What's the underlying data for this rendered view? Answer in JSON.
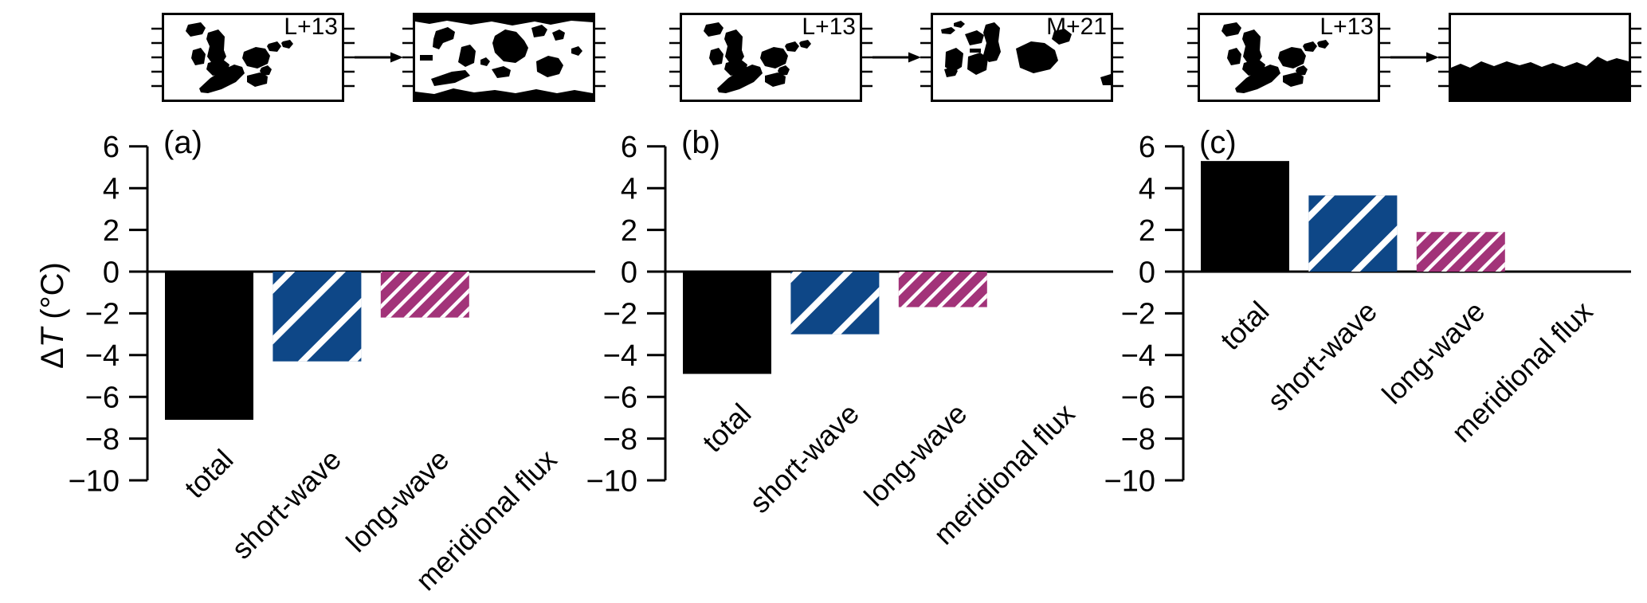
{
  "y_axis": {
    "label_delta": "Δ",
    "label_var": "T",
    "label_unit": " (°C)",
    "ticks": [
      6,
      4,
      2,
      0,
      -2,
      -4,
      -6,
      -8,
      -10
    ],
    "tick_labels": [
      "6",
      "4",
      "2",
      "0",
      "−2",
      "−4",
      "−6",
      "−8",
      "−10"
    ],
    "range": [
      -10,
      6
    ]
  },
  "chart_data": {
    "type": "bar",
    "title": "",
    "ylabel": "ΔT (°C)",
    "xlabel": "",
    "ylim": [
      -10,
      6
    ],
    "grid": false,
    "legend": "none",
    "categories": [
      "total",
      "short-wave",
      "long-wave",
      "meridional flux"
    ],
    "panels": [
      {
        "label": "(a)",
        "map_before_label": "L+13",
        "map_after_label": "",
        "map_before_type": "scattered-continents",
        "map_after_type": "dispersed-continents-polar-caps",
        "values": [
          -7.1,
          -4.3,
          -2.2,
          0
        ]
      },
      {
        "label": "(b)",
        "map_before_label": "L+13",
        "map_after_label": "M+21",
        "map_before_type": "scattered-continents",
        "map_after_type": "rearranged-continents",
        "values": [
          -4.9,
          -3.0,
          -1.7,
          0
        ]
      },
      {
        "label": "(c)",
        "map_before_label": "L+13",
        "map_after_label": "",
        "map_before_type": "scattered-continents",
        "map_after_type": "south-polar-supercontinent",
        "values": [
          5.3,
          3.65,
          1.9,
          0
        ]
      }
    ],
    "series_styles": [
      {
        "category": "total",
        "fill": "#000000",
        "hatch": "none"
      },
      {
        "category": "short-wave",
        "fill": "#0e4787",
        "hatch": "wide-diagonal"
      },
      {
        "category": "long-wave",
        "fill": "#a23379",
        "hatch": "dense-diagonal"
      },
      {
        "category": "meridional flux",
        "fill": "none",
        "hatch": "none"
      }
    ],
    "hatch_color": "#ffffff"
  }
}
